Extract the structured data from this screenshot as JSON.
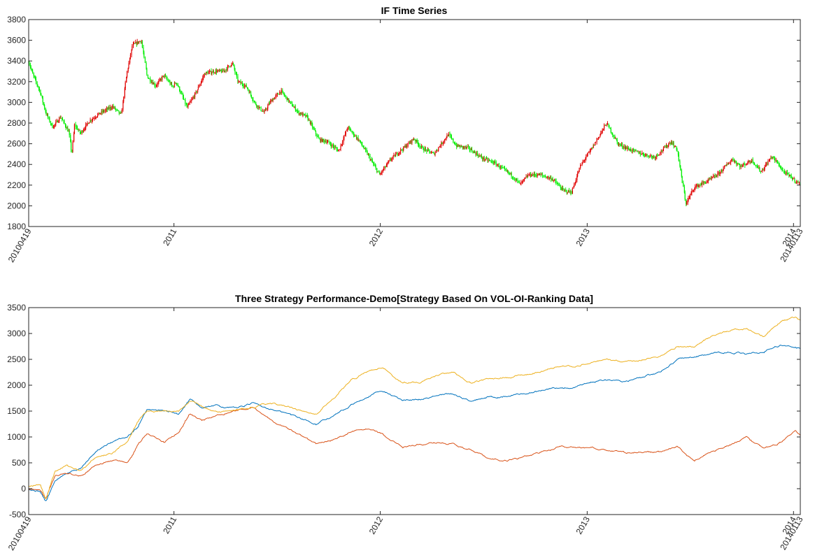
{
  "figure": {
    "charts": [
      {
        "id": "price",
        "type": "candlestick",
        "title": "IF Time Series",
        "up_color": "#e00000",
        "down_color": "#00ee00",
        "ylim": [
          1800,
          3800
        ],
        "yticks": [
          "1800",
          "2000",
          "2200",
          "2400",
          "2600",
          "2800",
          "3000",
          "3200",
          "3400",
          "3600",
          "3800"
        ]
      },
      {
        "id": "perf",
        "type": "line",
        "title": "Three Strategy Performance-Demo[Strategy Based On VOL-OI-Ranking Data]",
        "ylim": [
          -500,
          3500
        ],
        "yticks": [
          "-500",
          "0",
          "500",
          "1000",
          "1500",
          "2000",
          "2500",
          "3000",
          "3500"
        ]
      }
    ],
    "xticks": [
      "20100419",
      "2011",
      "2012",
      "2013",
      "2014",
      "20140113"
    ]
  },
  "chart_data": [
    {
      "type": "candlestick",
      "title": "IF Time Series",
      "x_range": [
        "2010-04-19",
        "2014-01-13"
      ],
      "ylim": [
        1800,
        3800
      ],
      "price_path": [
        [
          "2010-04-19",
          3400
        ],
        [
          "2010-04-26",
          3280
        ],
        [
          "2010-05-10",
          3100
        ],
        [
          "2010-05-20",
          2900
        ],
        [
          "2010-06-01",
          2760
        ],
        [
          "2010-06-15",
          2860
        ],
        [
          "2010-06-30",
          2710
        ],
        [
          "2010-07-10",
          2780
        ],
        [
          "2010-07-05",
          2500
        ],
        [
          "2010-07-20",
          2700
        ],
        [
          "2010-08-05",
          2820
        ],
        [
          "2010-08-25",
          2900
        ],
        [
          "2010-09-15",
          2960
        ],
        [
          "2010-09-30",
          2880
        ],
        [
          "2010-10-10",
          3280
        ],
        [
          "2010-10-20",
          3550
        ],
        [
          "2010-11-05",
          3600
        ],
        [
          "2010-11-15",
          3250
        ],
        [
          "2010-11-30",
          3160
        ],
        [
          "2010-12-15",
          3260
        ],
        [
          "2010-12-30",
          3150
        ],
        [
          "2011-01-05",
          3200
        ],
        [
          "2011-01-25",
          2950
        ],
        [
          "2011-02-10",
          3100
        ],
        [
          "2011-02-25",
          3280
        ],
        [
          "2011-03-15",
          3300
        ],
        [
          "2011-03-30",
          3300
        ],
        [
          "2011-04-15",
          3380
        ],
        [
          "2011-04-25",
          3200
        ],
        [
          "2011-05-10",
          3150
        ],
        [
          "2011-05-25",
          2990
        ],
        [
          "2011-06-10",
          2900
        ],
        [
          "2011-06-20",
          3000
        ],
        [
          "2011-07-10",
          3110
        ],
        [
          "2011-07-25",
          3000
        ],
        [
          "2011-08-10",
          2900
        ],
        [
          "2011-08-25",
          2860
        ],
        [
          "2011-09-15",
          2640
        ],
        [
          "2011-09-30",
          2620
        ],
        [
          "2011-10-20",
          2530
        ],
        [
          "2011-11-05",
          2760
        ],
        [
          "2011-11-25",
          2630
        ],
        [
          "2011-12-10",
          2500
        ],
        [
          "2011-12-31",
          2300
        ],
        [
          "2012-01-20",
          2450
        ],
        [
          "2012-02-10",
          2550
        ],
        [
          "2012-03-01",
          2650
        ],
        [
          "2012-03-15",
          2560
        ],
        [
          "2012-04-05",
          2500
        ],
        [
          "2012-05-01",
          2690
        ],
        [
          "2012-05-15",
          2580
        ],
        [
          "2012-06-05",
          2560
        ],
        [
          "2012-06-30",
          2460
        ],
        [
          "2012-07-20",
          2420
        ],
        [
          "2012-08-20",
          2300
        ],
        [
          "2012-09-05",
          2210
        ],
        [
          "2012-09-20",
          2300
        ],
        [
          "2012-10-10",
          2300
        ],
        [
          "2012-11-01",
          2260
        ],
        [
          "2012-11-20",
          2150
        ],
        [
          "2012-12-05",
          2130
        ],
        [
          "2012-12-20",
          2380
        ],
        [
          "2013-01-10",
          2560
        ],
        [
          "2013-02-05",
          2800
        ],
        [
          "2013-02-25",
          2600
        ],
        [
          "2013-03-15",
          2550
        ],
        [
          "2013-04-10",
          2500
        ],
        [
          "2013-05-01",
          2470
        ],
        [
          "2013-05-30",
          2620
        ],
        [
          "2013-06-10",
          2540
        ],
        [
          "2013-06-25",
          2020
        ],
        [
          "2013-07-10",
          2180
        ],
        [
          "2013-07-30",
          2230
        ],
        [
          "2013-08-20",
          2300
        ],
        [
          "2013-09-15",
          2450
        ],
        [
          "2013-09-30",
          2380
        ],
        [
          "2013-10-20",
          2440
        ],
        [
          "2013-11-05",
          2330
        ],
        [
          "2013-11-25",
          2480
        ],
        [
          "2013-12-15",
          2330
        ],
        [
          "2014-01-13",
          2210
        ]
      ]
    },
    {
      "type": "line",
      "title": "Three Strategy Performance-Demo[Strategy Based On VOL-OI-Ranking Data]",
      "x_range": [
        "2010-04-19",
        "2014-01-13"
      ],
      "ylim": [
        -500,
        3500
      ],
      "series": [
        {
          "color": "#0072bd",
          "points": [
            [
              "2010-04-19",
              0
            ],
            [
              "2010-05-10",
              -50
            ],
            [
              "2010-05-20",
              -250
            ],
            [
              "2010-06-05",
              150
            ],
            [
              "2010-06-25",
              300
            ],
            [
              "2010-07-20",
              400
            ],
            [
              "2010-08-15",
              700
            ],
            [
              "2010-09-15",
              900
            ],
            [
              "2010-10-10",
              1000
            ],
            [
              "2010-10-30",
              1200
            ],
            [
              "2010-11-15",
              1550
            ],
            [
              "2010-12-15",
              1500
            ],
            [
              "2011-01-10",
              1450
            ],
            [
              "2011-01-30",
              1750
            ],
            [
              "2011-02-20",
              1550
            ],
            [
              "2011-03-20",
              1600
            ],
            [
              "2011-04-20",
              1550
            ],
            [
              "2011-05-20",
              1650
            ],
            [
              "2011-06-20",
              1550
            ],
            [
              "2011-07-20",
              1450
            ],
            [
              "2011-08-20",
              1350
            ],
            [
              "2011-09-10",
              1250
            ],
            [
              "2011-10-10",
              1400
            ],
            [
              "2011-11-10",
              1600
            ],
            [
              "2011-12-10",
              1800
            ],
            [
              "2012-01-05",
              1900
            ],
            [
              "2012-02-10",
              1700
            ],
            [
              "2012-03-10",
              1720
            ],
            [
              "2012-04-10",
              1800
            ],
            [
              "2012-05-10",
              1830
            ],
            [
              "2012-06-10",
              1700
            ],
            [
              "2012-07-10",
              1780
            ],
            [
              "2012-08-10",
              1780
            ],
            [
              "2012-09-10",
              1840
            ],
            [
              "2012-10-10",
              1880
            ],
            [
              "2012-11-10",
              1950
            ],
            [
              "2012-12-10",
              1950
            ],
            [
              "2013-01-10",
              2050
            ],
            [
              "2013-02-10",
              2100
            ],
            [
              "2013-03-10",
              2080
            ],
            [
              "2013-04-10",
              2150
            ],
            [
              "2013-05-10",
              2250
            ],
            [
              "2013-06-10",
              2500
            ],
            [
              "2013-07-10",
              2550
            ],
            [
              "2013-08-10",
              2600
            ],
            [
              "2013-09-10",
              2650
            ],
            [
              "2013-10-10",
              2600
            ],
            [
              "2013-11-10",
              2650
            ],
            [
              "2013-12-10",
              2780
            ],
            [
              "2014-01-13",
              2700
            ]
          ]
        },
        {
          "color": "#d95319",
          "points": [
            [
              "2010-04-19",
              0
            ],
            [
              "2010-05-10",
              -30
            ],
            [
              "2010-05-20",
              -200
            ],
            [
              "2010-06-05",
              250
            ],
            [
              "2010-06-25",
              300
            ],
            [
              "2010-07-20",
              250
            ],
            [
              "2010-08-15",
              450
            ],
            [
              "2010-09-15",
              550
            ],
            [
              "2010-10-10",
              500
            ],
            [
              "2010-10-30",
              850
            ],
            [
              "2010-11-15",
              1050
            ],
            [
              "2010-12-15",
              900
            ],
            [
              "2011-01-10",
              1100
            ],
            [
              "2011-01-30",
              1450
            ],
            [
              "2011-02-20",
              1300
            ],
            [
              "2011-03-20",
              1420
            ],
            [
              "2011-04-20",
              1500
            ],
            [
              "2011-05-20",
              1600
            ],
            [
              "2011-06-20",
              1350
            ],
            [
              "2011-07-20",
              1150
            ],
            [
              "2011-08-20",
              1000
            ],
            [
              "2011-09-10",
              850
            ],
            [
              "2011-10-10",
              950
            ],
            [
              "2011-11-10",
              1100
            ],
            [
              "2011-12-10",
              1150
            ],
            [
              "2012-01-05",
              1050
            ],
            [
              "2012-02-10",
              800
            ],
            [
              "2012-03-10",
              850
            ],
            [
              "2012-04-10",
              900
            ],
            [
              "2012-05-10",
              850
            ],
            [
              "2012-06-10",
              750
            ],
            [
              "2012-07-10",
              600
            ],
            [
              "2012-08-10",
              550
            ],
            [
              "2012-09-10",
              600
            ],
            [
              "2012-10-10",
              700
            ],
            [
              "2012-11-10",
              800
            ],
            [
              "2012-12-10",
              800
            ],
            [
              "2013-01-10",
              800
            ],
            [
              "2013-02-10",
              750
            ],
            [
              "2013-03-10",
              700
            ],
            [
              "2013-04-10",
              700
            ],
            [
              "2013-05-10",
              700
            ],
            [
              "2013-06-10",
              800
            ],
            [
              "2013-07-10",
              550
            ],
            [
              "2013-08-10",
              700
            ],
            [
              "2013-09-10",
              850
            ],
            [
              "2013-10-10",
              1000
            ],
            [
              "2013-11-10",
              750
            ],
            [
              "2013-12-10",
              900
            ],
            [
              "2014-01-05",
              1150
            ],
            [
              "2014-01-13",
              1050
            ]
          ]
        },
        {
          "color": "#edb120",
          "points": [
            [
              "2010-04-19",
              50
            ],
            [
              "2010-05-10",
              100
            ],
            [
              "2010-05-20",
              -200
            ],
            [
              "2010-06-05",
              350
            ],
            [
              "2010-06-25",
              450
            ],
            [
              "2010-07-20",
              350
            ],
            [
              "2010-08-15",
              600
            ],
            [
              "2010-09-15",
              700
            ],
            [
              "2010-10-10",
              900
            ],
            [
              "2010-10-30",
              1300
            ],
            [
              "2010-11-15",
              1500
            ],
            [
              "2010-12-15",
              1500
            ],
            [
              "2011-01-10",
              1500
            ],
            [
              "2011-01-30",
              1700
            ],
            [
              "2011-02-20",
              1600
            ],
            [
              "2011-03-20",
              1480
            ],
            [
              "2011-04-20",
              1500
            ],
            [
              "2011-05-20",
              1580
            ],
            [
              "2011-06-20",
              1650
            ],
            [
              "2011-07-20",
              1600
            ],
            [
              "2011-08-20",
              1500
            ],
            [
              "2011-09-10",
              1450
            ],
            [
              "2011-10-10",
              1750
            ],
            [
              "2011-11-10",
              2100
            ],
            [
              "2011-12-10",
              2250
            ],
            [
              "2012-01-05",
              2350
            ],
            [
              "2012-02-10",
              2050
            ],
            [
              "2012-03-10",
              2050
            ],
            [
              "2012-04-10",
              2200
            ],
            [
              "2012-05-10",
              2250
            ],
            [
              "2012-06-10",
              2050
            ],
            [
              "2012-07-10",
              2100
            ],
            [
              "2012-08-10",
              2150
            ],
            [
              "2012-09-10",
              2200
            ],
            [
              "2012-10-10",
              2250
            ],
            [
              "2012-11-10",
              2350
            ],
            [
              "2012-12-10",
              2380
            ],
            [
              "2013-01-10",
              2450
            ],
            [
              "2013-02-10",
              2500
            ],
            [
              "2013-03-10",
              2450
            ],
            [
              "2013-04-10",
              2500
            ],
            [
              "2013-05-10",
              2550
            ],
            [
              "2013-06-10",
              2750
            ],
            [
              "2013-07-10",
              2750
            ],
            [
              "2013-08-10",
              2950
            ],
            [
              "2013-09-10",
              3050
            ],
            [
              "2013-10-10",
              3100
            ],
            [
              "2013-11-10",
              2950
            ],
            [
              "2013-12-10",
              3250
            ],
            [
              "2014-01-05",
              3300
            ],
            [
              "2014-01-13",
              3250
            ]
          ]
        }
      ]
    }
  ]
}
